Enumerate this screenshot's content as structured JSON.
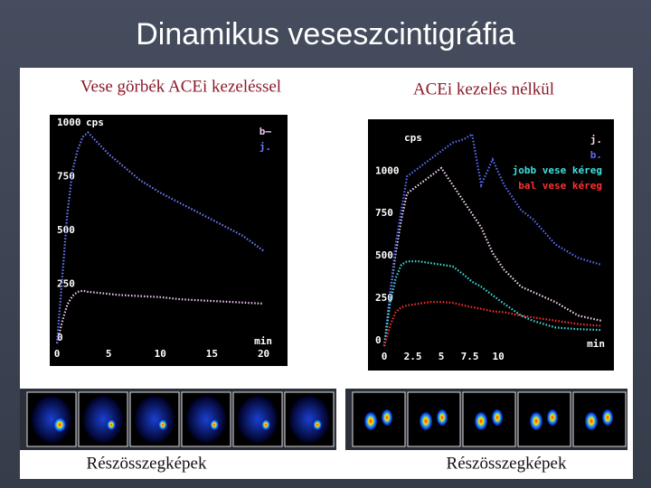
{
  "slide_title": "Dinamikus veseszcintigráfia",
  "chart_data": [
    {
      "type": "line",
      "title": "Vese görbék ACEi kezeléssel",
      "y_label": "cps",
      "x_label": "min",
      "xlim": [
        0,
        21
      ],
      "ylim": [
        0,
        1050
      ],
      "xticks": [
        0,
        5,
        10,
        15,
        20
      ],
      "yticks": [
        0,
        250,
        500,
        750,
        1000
      ],
      "x": [
        0,
        0.5,
        1,
        1.5,
        2,
        2.5,
        3,
        4,
        5,
        6,
        8,
        10,
        12,
        14,
        16,
        18,
        20
      ],
      "series": [
        {
          "name": "b–",
          "color": "#f0c8f0",
          "values": [
            0,
            100,
            180,
            220,
            240,
            245,
            240,
            235,
            230,
            225,
            220,
            215,
            205,
            200,
            195,
            190,
            185
          ]
        },
        {
          "name": "j.",
          "color": "#6b7cff",
          "values": [
            0,
            300,
            600,
            800,
            900,
            960,
            980,
            930,
            880,
            840,
            760,
            700,
            650,
            600,
            550,
            500,
            430
          ]
        }
      ]
    },
    {
      "type": "line",
      "title": "ACEi kezelés nélkül",
      "y_label": "cps",
      "x_label": "min",
      "xlim": [
        0,
        19.5
      ],
      "ylim": [
        0,
        1300
      ],
      "xticks": [
        0,
        2.5,
        5,
        7.5,
        10
      ],
      "yticks": [
        0,
        250,
        500,
        750,
        1000
      ],
      "x": [
        0,
        0.5,
        1,
        1.5,
        2,
        3,
        4,
        5,
        6,
        7,
        7.7,
        8.5,
        9.5,
        10.5,
        12,
        13,
        15,
        17,
        19
      ],
      "series": [
        {
          "name": "j.",
          "color": "#f4d8f4",
          "values": [
            0,
            300,
            550,
            750,
            900,
            950,
            1000,
            1050,
            950,
            850,
            780,
            700,
            550,
            450,
            350,
            320,
            260,
            180,
            150
          ]
        },
        {
          "name": "b.",
          "color": "#5a6cff",
          "values": [
            0,
            300,
            600,
            800,
            1000,
            1050,
            1100,
            1150,
            1200,
            1220,
            1250,
            950,
            1100,
            950,
            800,
            750,
            600,
            520,
            480
          ]
        },
        {
          "name": "jobb vese kéreg",
          "color": "#40e0e0",
          "values": [
            0,
            250,
            400,
            480,
            500,
            500,
            490,
            480,
            470,
            420,
            380,
            350,
            300,
            250,
            180,
            150,
            110,
            100,
            95
          ]
        },
        {
          "name": "bal vese kéreg",
          "color": "#ff3030",
          "values": [
            0,
            120,
            200,
            230,
            240,
            250,
            260,
            260,
            255,
            240,
            230,
            220,
            205,
            200,
            180,
            170,
            150,
            130,
            120
          ]
        }
      ]
    }
  ],
  "captions": [
    "Részösszegképek",
    "Részösszegképek"
  ]
}
